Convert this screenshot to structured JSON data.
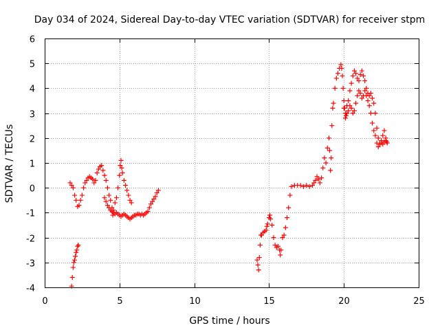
{
  "chart_data": {
    "type": "scatter",
    "title": "Day 034 of 2024, Sidereal Day-to-day VTEC variation (SDTVAR) for receiver stpm",
    "xlabel": "GPS time / hours",
    "ylabel": "SDTVAR / TECUs",
    "xlim": [
      0,
      25
    ],
    "ylim": [
      -4,
      6
    ],
    "xticks": [
      0,
      5,
      10,
      15,
      20,
      25
    ],
    "yticks": [
      -4,
      -3,
      -2,
      -1,
      0,
      1,
      2,
      3,
      4,
      5,
      6
    ],
    "grid": true,
    "marker": "+",
    "color": "#ff0000",
    "series": [
      {
        "name": "SDTVAR",
        "points": [
          [
            1.8,
            -3.95
          ],
          [
            1.85,
            -3.6
          ],
          [
            1.9,
            -3.2
          ],
          [
            1.95,
            -3.0
          ],
          [
            2.0,
            -2.9
          ],
          [
            2.05,
            -2.75
          ],
          [
            2.1,
            -2.6
          ],
          [
            2.15,
            -2.5
          ],
          [
            2.2,
            -2.35
          ],
          [
            2.25,
            -2.3
          ],
          [
            1.7,
            0.2
          ],
          [
            1.8,
            0.1
          ],
          [
            1.9,
            0.0
          ],
          [
            2.0,
            -0.3
          ],
          [
            2.1,
            -0.5
          ],
          [
            2.2,
            -0.75
          ],
          [
            2.3,
            -0.7
          ],
          [
            2.4,
            -0.5
          ],
          [
            2.5,
            -0.3
          ],
          [
            2.6,
            0.0
          ],
          [
            2.7,
            0.2
          ],
          [
            2.8,
            0.3
          ],
          [
            2.9,
            0.4
          ],
          [
            3.0,
            0.45
          ],
          [
            3.1,
            0.4
          ],
          [
            3.2,
            0.35
          ],
          [
            3.3,
            0.2
          ],
          [
            3.4,
            0.3
          ],
          [
            3.5,
            0.6
          ],
          [
            3.6,
            0.75
          ],
          [
            3.7,
            0.85
          ],
          [
            3.8,
            0.9
          ],
          [
            3.9,
            0.7
          ],
          [
            4.0,
            0.5
          ],
          [
            4.1,
            0.3
          ],
          [
            4.2,
            0.0
          ],
          [
            4.3,
            -0.3
          ],
          [
            4.4,
            -0.5
          ],
          [
            4.5,
            -0.8
          ],
          [
            4.55,
            -1.1
          ],
          [
            4.6,
            -0.9
          ],
          [
            4.7,
            -0.6
          ],
          [
            4.8,
            -0.4
          ],
          [
            4.9,
            0.0
          ],
          [
            5.0,
            0.5
          ],
          [
            5.05,
            0.9
          ],
          [
            5.1,
            1.1
          ],
          [
            5.15,
            0.8
          ],
          [
            5.2,
            0.6
          ],
          [
            5.3,
            0.3
          ],
          [
            5.4,
            0.1
          ],
          [
            5.5,
            -0.1
          ],
          [
            5.6,
            -0.3
          ],
          [
            5.7,
            -0.5
          ],
          [
            5.8,
            -0.6
          ],
          [
            4.0,
            -0.4
          ],
          [
            4.1,
            -0.55
          ],
          [
            4.2,
            -0.7
          ],
          [
            4.3,
            -0.8
          ],
          [
            4.4,
            -0.9
          ],
          [
            4.5,
            -0.95
          ],
          [
            4.6,
            -1.0
          ],
          [
            4.7,
            -1.05
          ],
          [
            4.8,
            -1.0
          ],
          [
            4.9,
            -1.05
          ],
          [
            5.0,
            -1.1
          ],
          [
            5.1,
            -1.15
          ],
          [
            5.2,
            -1.1
          ],
          [
            5.3,
            -1.05
          ],
          [
            5.4,
            -1.1
          ],
          [
            5.5,
            -1.15
          ],
          [
            5.6,
            -1.2
          ],
          [
            5.7,
            -1.25
          ],
          [
            5.8,
            -1.2
          ],
          [
            5.9,
            -1.15
          ],
          [
            6.0,
            -1.1
          ],
          [
            6.1,
            -1.1
          ],
          [
            6.2,
            -1.05
          ],
          [
            6.3,
            -1.05
          ],
          [
            6.4,
            -1.1
          ],
          [
            6.5,
            -1.05
          ],
          [
            6.6,
            -1.1
          ],
          [
            6.7,
            -1.05
          ],
          [
            6.8,
            -1.0
          ],
          [
            6.9,
            -0.95
          ],
          [
            7.0,
            -0.8
          ],
          [
            7.1,
            -0.65
          ],
          [
            7.2,
            -0.55
          ],
          [
            7.3,
            -0.45
          ],
          [
            7.4,
            -0.35
          ],
          [
            7.5,
            -0.2
          ],
          [
            7.6,
            -0.1
          ],
          [
            14.2,
            -2.9
          ],
          [
            14.25,
            -3.1
          ],
          [
            14.3,
            -3.3
          ],
          [
            14.35,
            -2.8
          ],
          [
            14.4,
            -2.3
          ],
          [
            14.45,
            -1.9
          ],
          [
            14.5,
            -1.9
          ],
          [
            14.6,
            -1.8
          ],
          [
            14.7,
            -1.75
          ],
          [
            14.8,
            -1.7
          ],
          [
            14.85,
            -1.55
          ],
          [
            14.9,
            -1.45
          ],
          [
            15.0,
            -1.2
          ],
          [
            15.05,
            -1.1
          ],
          [
            15.1,
            -1.25
          ],
          [
            15.2,
            -1.5
          ],
          [
            15.3,
            -2.0
          ],
          [
            15.4,
            -2.3
          ],
          [
            15.5,
            -2.4
          ],
          [
            15.6,
            -2.35
          ],
          [
            15.7,
            -2.5
          ],
          [
            15.75,
            -2.7
          ],
          [
            15.8,
            -2.5
          ],
          [
            15.9,
            -2.0
          ],
          [
            16.0,
            -1.9
          ],
          [
            16.1,
            -1.6
          ],
          [
            16.2,
            -1.2
          ],
          [
            16.3,
            -0.8
          ],
          [
            16.4,
            -0.3
          ],
          [
            16.5,
            0.05
          ],
          [
            16.7,
            0.1
          ],
          [
            16.9,
            0.1
          ],
          [
            17.1,
            0.1
          ],
          [
            17.3,
            0.05
          ],
          [
            17.5,
            0.1
          ],
          [
            17.7,
            0.05
          ],
          [
            17.9,
            0.1
          ],
          [
            18.0,
            0.2
          ],
          [
            18.1,
            0.3
          ],
          [
            18.2,
            0.45
          ],
          [
            18.3,
            0.35
          ],
          [
            18.4,
            0.2
          ],
          [
            18.5,
            0.4
          ],
          [
            18.6,
            0.8
          ],
          [
            18.7,
            1.2
          ],
          [
            18.8,
            1.0
          ],
          [
            18.9,
            1.6
          ],
          [
            19.0,
            2.0
          ],
          [
            19.05,
            1.5
          ],
          [
            19.1,
            0.7
          ],
          [
            19.15,
            1.2
          ],
          [
            19.2,
            2.5
          ],
          [
            19.25,
            3.2
          ],
          [
            19.3,
            3.4
          ],
          [
            19.4,
            4.0
          ],
          [
            19.5,
            4.4
          ],
          [
            19.6,
            4.6
          ],
          [
            19.7,
            4.8
          ],
          [
            19.8,
            4.95
          ],
          [
            19.85,
            4.8
          ],
          [
            19.9,
            4.5
          ],
          [
            19.95,
            4.0
          ],
          [
            20.0,
            3.5
          ],
          [
            20.05,
            3.2
          ],
          [
            20.1,
            2.8
          ],
          [
            20.15,
            2.9
          ],
          [
            20.2,
            3.0
          ],
          [
            20.3,
            3.5
          ],
          [
            20.4,
            3.9
          ],
          [
            20.5,
            4.2
          ],
          [
            20.6,
            4.5
          ],
          [
            20.7,
            4.7
          ],
          [
            20.8,
            4.6
          ],
          [
            20.9,
            4.4
          ],
          [
            21.0,
            4.3
          ],
          [
            21.1,
            4.55
          ],
          [
            21.2,
            4.7
          ],
          [
            21.3,
            4.5
          ],
          [
            21.4,
            4.3
          ],
          [
            21.5,
            4.0
          ],
          [
            21.6,
            3.8
          ],
          [
            21.7,
            3.7
          ],
          [
            21.8,
            3.8
          ],
          [
            21.9,
            3.6
          ],
          [
            22.0,
            3.4
          ],
          [
            22.1,
            3.0
          ],
          [
            22.2,
            2.4
          ],
          [
            22.3,
            2.0
          ],
          [
            22.4,
            1.8
          ],
          [
            22.5,
            1.9
          ],
          [
            22.6,
            2.1
          ],
          [
            22.7,
            2.3
          ],
          [
            22.8,
            2.0
          ],
          [
            22.9,
            1.8
          ],
          [
            20.0,
            3.2
          ],
          [
            20.1,
            3.0
          ],
          [
            20.2,
            3.3
          ],
          [
            20.3,
            3.1
          ],
          [
            20.4,
            3.3
          ],
          [
            20.5,
            3.2
          ],
          [
            20.6,
            3.0
          ],
          [
            20.7,
            3.1
          ],
          [
            20.8,
            3.4
          ],
          [
            20.9,
            3.7
          ],
          [
            21.0,
            3.9
          ],
          [
            21.1,
            3.8
          ],
          [
            21.2,
            3.6
          ],
          [
            21.3,
            3.7
          ],
          [
            21.4,
            3.9
          ],
          [
            21.5,
            3.7
          ],
          [
            21.6,
            3.5
          ],
          [
            21.7,
            3.3
          ],
          [
            21.8,
            3.0
          ],
          [
            21.9,
            2.6
          ],
          [
            22.0,
            2.3
          ],
          [
            22.1,
            2.1
          ],
          [
            22.2,
            1.8
          ],
          [
            22.3,
            1.65
          ],
          [
            22.4,
            1.75
          ],
          [
            22.5,
            1.8
          ],
          [
            22.6,
            1.75
          ],
          [
            22.7,
            1.85
          ],
          [
            22.8,
            1.9
          ],
          [
            22.85,
            1.85
          ]
        ]
      }
    ]
  }
}
